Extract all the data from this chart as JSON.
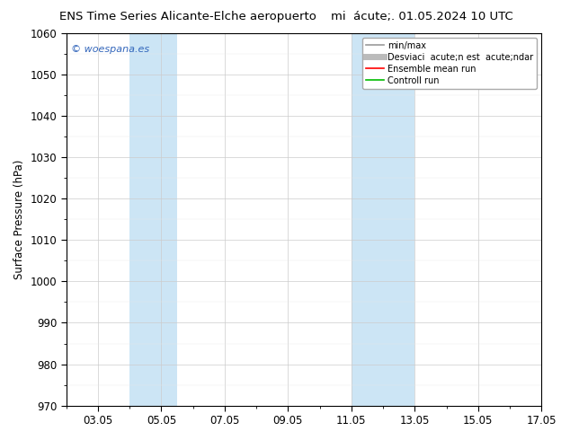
{
  "title_left": "ENS Time Series Alicante-Elche aeropuerto",
  "title_right": "mi  acute;. 01.05.2024 10 UTC",
  "ylabel": "Surface Pressure (hPa)",
  "ylim": [
    970,
    1060
  ],
  "yticks": [
    970,
    980,
    990,
    1000,
    1010,
    1020,
    1030,
    1040,
    1050,
    1060
  ],
  "xlim": [
    0,
    15
  ],
  "xtick_labels": [
    "03.05",
    "05.05",
    "07.05",
    "09.05",
    "11.05",
    "13.05",
    "15.05",
    "17.05"
  ],
  "xtick_positions": [
    1,
    3,
    5,
    7,
    9,
    11,
    13,
    15
  ],
  "shaded_bands": [
    {
      "x_start": 2.0,
      "x_end": 3.5,
      "color": "#cce5f5"
    },
    {
      "x_start": 9.0,
      "x_end": 11.0,
      "color": "#cce5f5"
    }
  ],
  "watermark": "© woespana.es",
  "watermark_color": "#3366bb",
  "legend_entries": [
    {
      "label": "min/max",
      "color": "#999999",
      "lw": 1.2,
      "style": "-"
    },
    {
      "label": "Desviaci  acute;n est  acute;ndar",
      "color": "#bbbbbb",
      "lw": 5,
      "style": "-"
    },
    {
      "label": "Ensemble mean run",
      "color": "#ff0000",
      "lw": 1.2,
      "style": "-"
    },
    {
      "label": "Controll run",
      "color": "#00bb00",
      "lw": 1.2,
      "style": "-"
    }
  ],
  "background_color": "#ffffff",
  "plot_bg_color": "#ffffff",
  "grid_color": "#cccccc",
  "font_size": 8.5,
  "title_fontsize": 9.5
}
